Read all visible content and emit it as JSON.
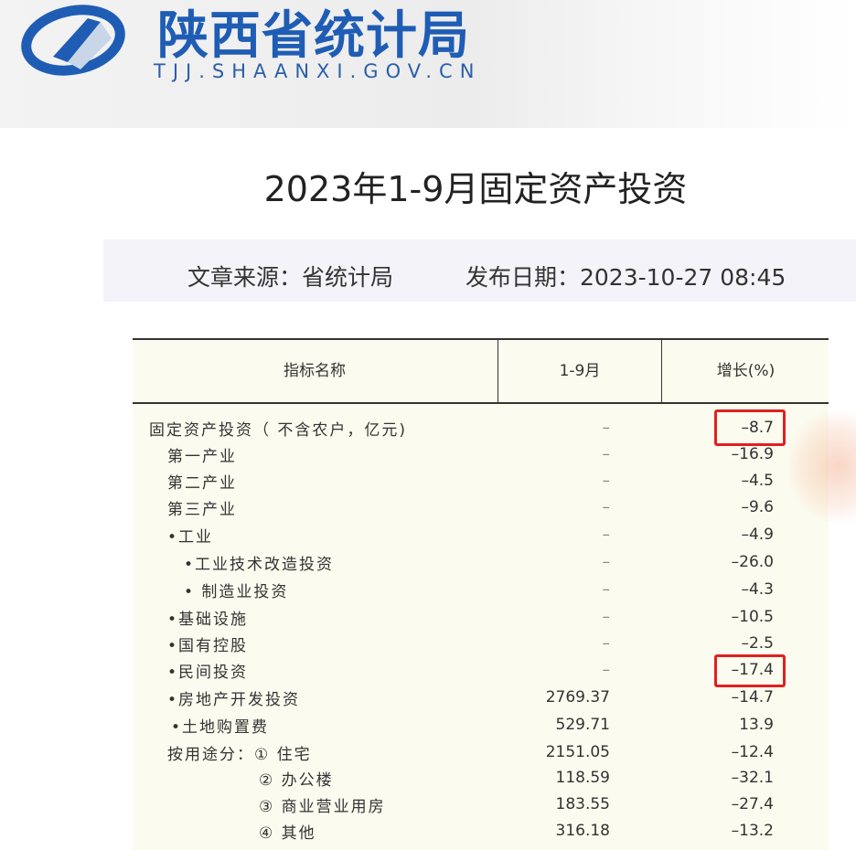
{
  "site": {
    "name": "陕西省统计局",
    "url": "TJJ.SHAANXI.GOV.CN",
    "brand_color": "#1f5db5"
  },
  "article": {
    "title": "2023年1-9月固定资产投资",
    "source": "文章来源：省统计局",
    "date": "发布日期：2023-10-27 08:45"
  },
  "table": {
    "headers": [
      "指标名称",
      "1-9月",
      "增长(%)"
    ],
    "rows": [
      {
        "name": "固定资产投资（ 不含农户，亿元)",
        "value": "–",
        "growth": "–8.7",
        "highlighted": true
      },
      {
        "name": "第一产业",
        "value": "–",
        "growth": "–16.9"
      },
      {
        "name": "第二产业",
        "value": "–",
        "growth": "–4.5"
      },
      {
        "name": "第三产业",
        "value": "–",
        "growth": "–9.6"
      },
      {
        "name": "•工业",
        "value": "–",
        "growth": "–4.9"
      },
      {
        "name": "•工业技术改造投资",
        "value": "–",
        "growth": "–26.0"
      },
      {
        "name": "• 制造业投资",
        "value": "–",
        "growth": "–4.3"
      },
      {
        "name": "•基础设施",
        "value": "–",
        "growth": "–10.5"
      },
      {
        "name": "•国有控股",
        "value": "–",
        "growth": "–2.5"
      },
      {
        "name": "•民间投资",
        "value": "–",
        "growth": "–17.4",
        "highlighted": true
      },
      {
        "name": "•房地产开发投资",
        "value": "2769.37",
        "growth": "–14.7"
      },
      {
        "name": "•土地购置费",
        "value": "529.71",
        "growth": "13.9"
      },
      {
        "name": "按用途分：① 住宅",
        "value": "2151.05",
        "growth": "–12.4"
      },
      {
        "name": "② 办公楼",
        "value": "118.59",
        "growth": "–32.1"
      },
      {
        "name": "③ 商业营业用房",
        "value": "183.55",
        "growth": "–27.4"
      },
      {
        "name": "④ 其他",
        "value": "316.18",
        "growth": "–13.2"
      }
    ]
  }
}
